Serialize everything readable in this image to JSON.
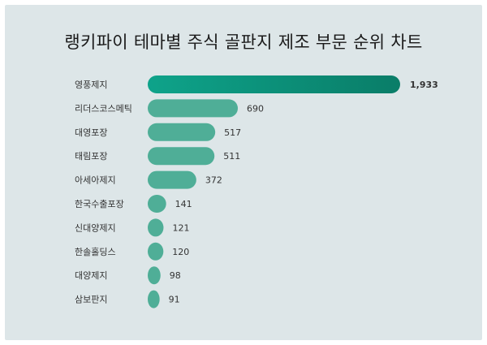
{
  "chart_data": {
    "type": "bar",
    "orientation": "horizontal",
    "title": "랭키파이 테마별 주식 골판지 제조 부문 순위 차트",
    "categories": [
      "영풍제지",
      "리더스코스메틱",
      "대영포장",
      "태림포장",
      "아세아제지",
      "한국수출포장",
      "신대양제지",
      "한솔홀딩스",
      "대양제지",
      "삼보판지"
    ],
    "values": [
      1933,
      690,
      517,
      511,
      372,
      141,
      121,
      120,
      98,
      91
    ],
    "value_labels": [
      "1,933",
      "690",
      "517",
      "511",
      "372",
      "141",
      "121",
      "120",
      "98",
      "91"
    ],
    "xlim": [
      0,
      1933
    ],
    "grid": false,
    "legend": "none",
    "colors": {
      "panel_background": "#dde6e8",
      "top_bar_start": "#0ea38a",
      "top_bar_end": "#0a7d68",
      "bar": "#4fae97"
    }
  }
}
